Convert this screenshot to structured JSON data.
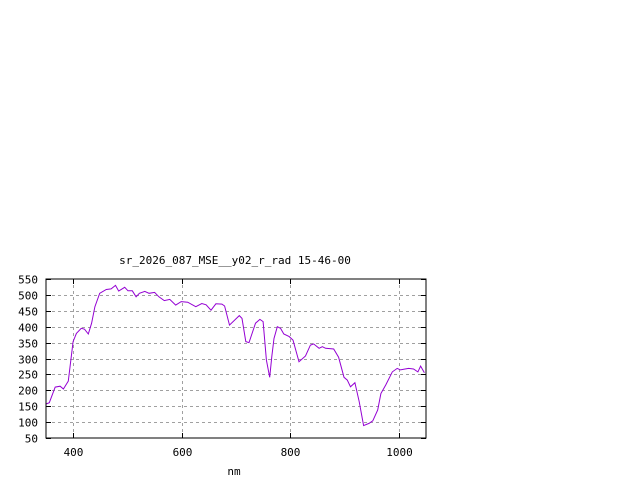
{
  "chart_data": {
    "type": "line",
    "title": "sr_2026_087_MSE__y02_r_rad 15-46-00",
    "xlabel": "nm",
    "ylabel": "",
    "xlim": [
      350,
      1050
    ],
    "ylim": [
      50,
      550
    ],
    "xticks": [
      400,
      600,
      800,
      1000
    ],
    "yticks": [
      50,
      100,
      150,
      200,
      250,
      300,
      350,
      400,
      450,
      500,
      550
    ],
    "grid": true,
    "line_color": "#9400d3",
    "series": [
      {
        "x": [
          350,
          356,
          367,
          376,
          382,
          391,
          400,
          406,
          415,
          421,
          428,
          434,
          440,
          449,
          461,
          470,
          478,
          484,
          495,
          501,
          509,
          516,
          522,
          532,
          540,
          550,
          558,
          568,
          578,
          589,
          599,
          611,
          626,
          637,
          645,
          654,
          663,
          674,
          679,
          688,
          706,
          711,
          718,
          724,
          736,
          744,
          750,
          756,
          762,
          766,
          770,
          776,
          782,
          788,
          798,
          805,
          816,
          828,
          837,
          843,
          853,
          859,
          865,
          880,
          889,
          899,
          905,
          911,
          919,
          927,
          935,
          945,
          952,
          961,
          967,
          976,
          988,
          997,
          1003,
          1009,
          1018,
          1027,
          1035,
          1040,
          1047
        ],
        "y": [
          157,
          161,
          210,
          213,
          204,
          229,
          353,
          379,
          395,
          392,
          377,
          411,
          463,
          505,
          517,
          519,
          530,
          512,
          524,
          513,
          513,
          494,
          505,
          511,
          505,
          508,
          494,
          482,
          486,
          468,
          479,
          477,
          463,
          473,
          469,
          452,
          472,
          471,
          465,
          405,
          435,
          426,
          353,
          350,
          411,
          423,
          416,
          295,
          241,
          306,
          363,
          400,
          395,
          377,
          369,
          358,
          290,
          308,
          342,
          346,
          332,
          337,
          332,
          330,
          304,
          241,
          232,
          211,
          224,
          164,
          89,
          96,
          104,
          138,
          190,
          217,
          258,
          269,
          264,
          266,
          269,
          267,
          258,
          276,
          255
        ]
      }
    ]
  }
}
